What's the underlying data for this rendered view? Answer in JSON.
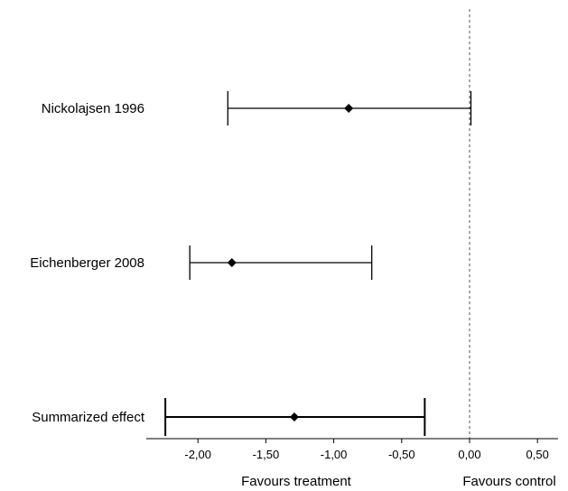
{
  "chart_data": {
    "type": "forest",
    "xlim": [
      -2.4,
      0.65
    ],
    "ticks": [
      -2.0,
      -1.5,
      -1.0,
      -0.5,
      0.0,
      0.5
    ],
    "tick_labels": [
      "-2,00",
      "-1,50",
      "-1,00",
      "-0,50",
      "0,00",
      "0,50"
    ],
    "reference_line": 0.0,
    "reference_line_style": "dotted",
    "grid": false,
    "xlabel_left": "Favours treatment",
    "xlabel_right": "Favours control",
    "studies": [
      {
        "label": "Nickolajsen 1996",
        "estimate": -0.89,
        "lower": -1.78,
        "upper": 0.01
      },
      {
        "label": "Eichenberger 2008",
        "estimate": -1.75,
        "lower": -2.06,
        "upper": -0.72
      },
      {
        "label": "Summarized effect",
        "estimate": -1.29,
        "lower": -2.24,
        "upper": -0.33,
        "bold": true
      }
    ]
  }
}
